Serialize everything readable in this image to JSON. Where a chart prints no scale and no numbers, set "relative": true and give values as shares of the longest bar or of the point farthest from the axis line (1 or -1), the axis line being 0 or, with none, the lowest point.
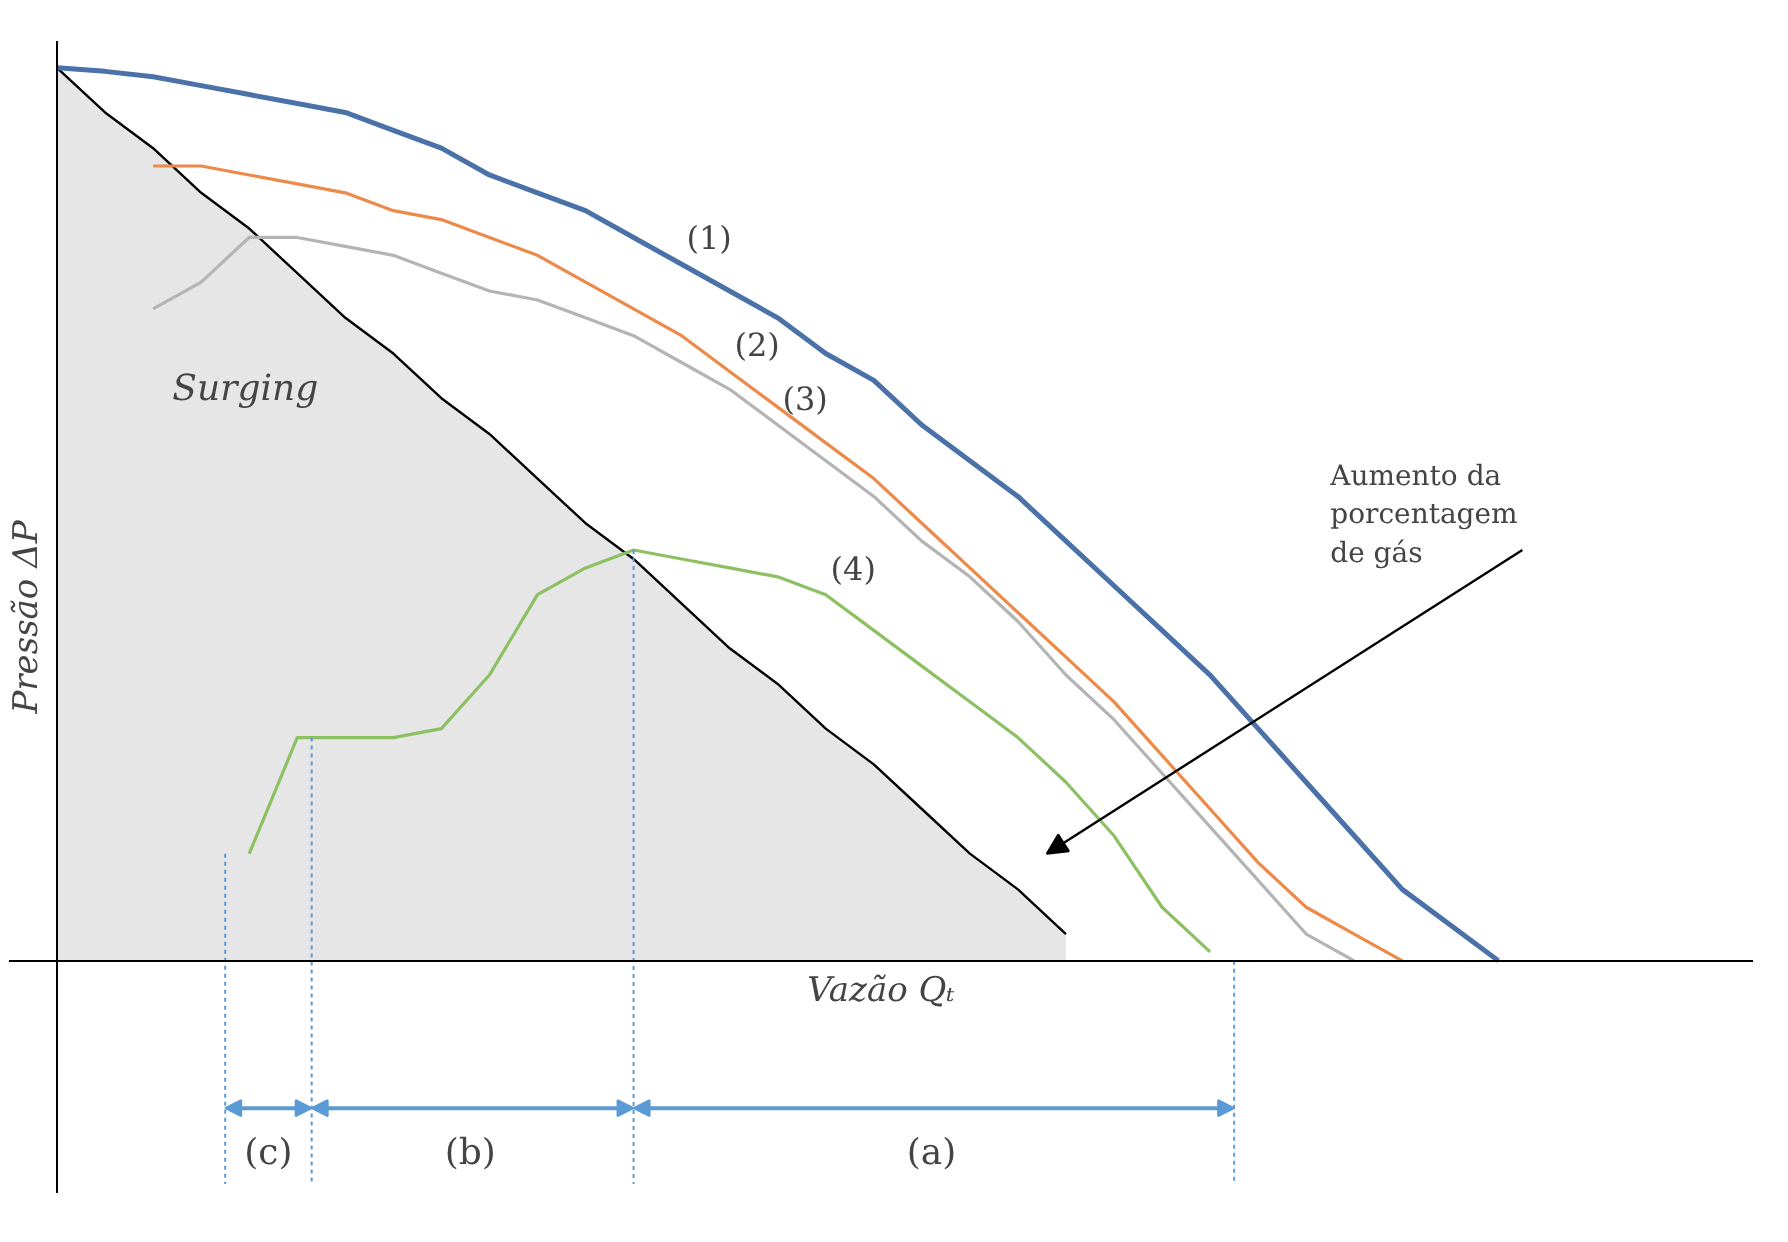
{
  "chart_data": {
    "type": "line",
    "relative": true,
    "xlabel": "Vazão Qₜ",
    "ylabel": "Pressão ΔP",
    "categories": [
      null,
      null,
      null,
      null,
      null,
      null,
      null,
      null,
      null,
      null,
      null,
      null,
      null,
      null,
      null,
      null,
      null,
      null,
      null,
      null,
      null,
      null,
      null,
      null,
      null,
      null,
      null,
      null,
      null,
      null,
      null
    ],
    "series": [
      {
        "type": "area",
        "color": "#e6e6e6",
        "values": [
          1.0,
          0.95,
          0.91,
          0.86,
          0.82,
          0.77,
          0.72,
          0.68,
          0.63,
          0.59,
          0.54,
          0.49,
          0.45,
          0.4,
          0.35,
          0.31,
          0.26,
          0.22,
          0.17,
          0.12,
          0.08,
          0.03,
          null,
          null,
          null,
          null,
          null,
          null,
          null,
          null,
          null
        ]
      },
      {
        "name": "(1)",
        "color": "#4a72a8",
        "values": [
          1.0,
          0.996,
          0.99,
          0.98,
          0.97,
          0.96,
          0.95,
          0.93,
          0.91,
          0.88,
          0.86,
          0.84,
          0.81,
          0.78,
          0.75,
          0.72,
          0.68,
          0.65,
          0.6,
          0.56,
          0.52,
          0.47,
          0.42,
          0.37,
          0.32,
          0.26,
          0.2,
          0.14,
          0.08,
          0.04,
          0
        ]
      },
      {
        "name": "(2)",
        "color": "#ed8a4a",
        "values": [
          null,
          null,
          0.89,
          0.89,
          0.88,
          0.87,
          0.86,
          0.84,
          0.83,
          0.81,
          0.79,
          0.76,
          0.73,
          0.7,
          0.66,
          0.62,
          0.58,
          0.54,
          0.49,
          0.44,
          0.39,
          0.34,
          0.29,
          0.23,
          0.17,
          0.11,
          0.06,
          0.03,
          0,
          null,
          null
        ]
      },
      {
        "name": "(3)",
        "color": "#b4b4b4",
        "values": [
          null,
          null,
          0.73,
          0.76,
          0.81,
          0.81,
          0.8,
          0.79,
          0.77,
          0.75,
          0.74,
          0.72,
          0.7,
          0.67,
          0.64,
          0.6,
          0.56,
          0.52,
          0.47,
          0.43,
          0.38,
          0.32,
          0.27,
          0.21,
          0.15,
          0.09,
          0.03,
          0,
          null,
          null,
          null
        ]
      },
      {
        "name": "(4)",
        "color": "#8cc063",
        "values": [
          null,
          null,
          null,
          null,
          0.12,
          0.25,
          0.25,
          0.25,
          0.26,
          0.32,
          0.41,
          0.44,
          0.46,
          0.45,
          0.44,
          0.43,
          0.41,
          0.37,
          0.33,
          0.29,
          0.25,
          0.2,
          0.14,
          0.06,
          0.01,
          null,
          null,
          null,
          null,
          null,
          null
        ]
      }
    ],
    "annotations": [
      "Surging",
      "Aumento da porcentagem de gás",
      "(c)",
      "(b)",
      "(a)"
    ]
  }
}
